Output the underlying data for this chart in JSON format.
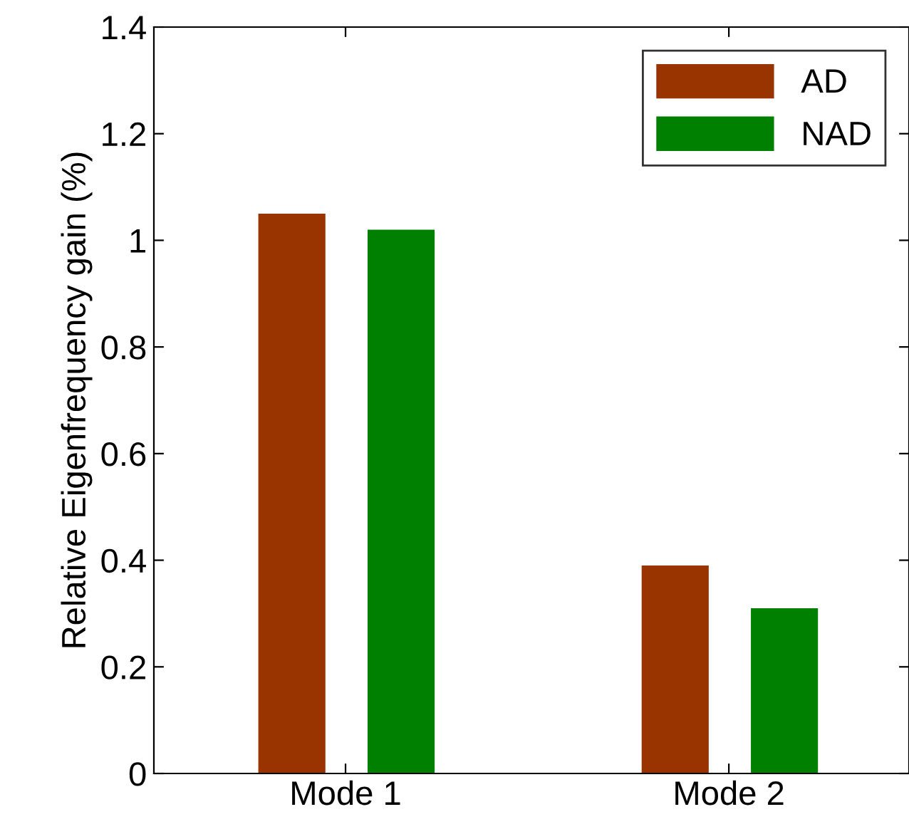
{
  "chart_data": {
    "type": "bar",
    "ylabel": "Relative Eigenfrequency gain (%)",
    "categories": [
      "Mode 1",
      "Mode 2"
    ],
    "series": [
      {
        "name": "AD",
        "color": "#993300",
        "values": [
          1.05,
          0.39
        ]
      },
      {
        "name": "NAD",
        "color": "#008000",
        "values": [
          1.02,
          0.31
        ]
      }
    ],
    "ylim": [
      0,
      1.4
    ],
    "yticks": [
      0,
      0.2,
      0.4,
      0.6,
      0.8,
      1,
      1.2,
      1.4
    ],
    "grid": false,
    "legend": "top right"
  }
}
